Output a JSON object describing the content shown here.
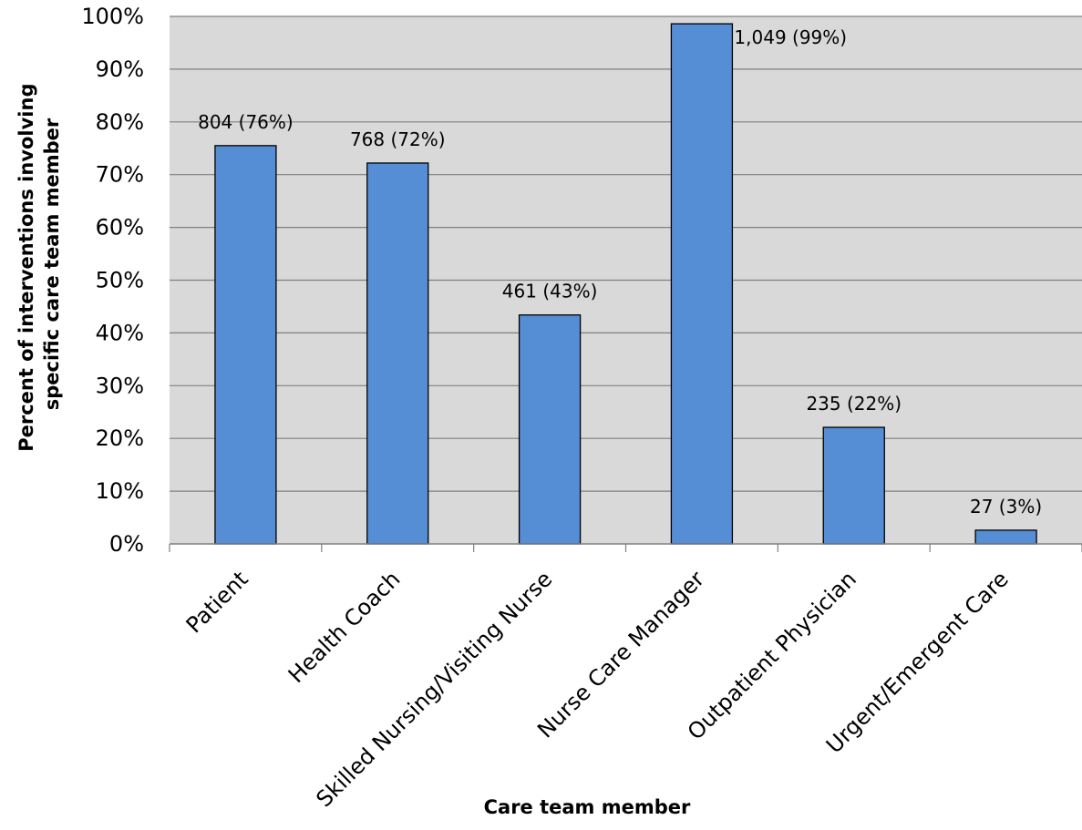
{
  "chart_data": {
    "type": "bar",
    "title": "",
    "xlabel": "Care team member",
    "ylabel_lines": [
      "Percent of interventions involving",
      "specific care team member"
    ],
    "categories": [
      "Patient",
      "Health Coach",
      "Skilled Nursing/Visiting Nurse",
      "Nurse Care Manager",
      "Outpatient Physician",
      "Urgent/Emergent Care"
    ],
    "values": [
      75.5,
      72.2,
      43.4,
      98.6,
      22.1,
      2.6
    ],
    "data_labels": [
      "804 (76%)",
      "768 (72%)",
      "461 (43%)",
      "1,049 (99%)",
      "235 (22%)",
      "27 (3%)"
    ],
    "ylim": [
      0,
      100
    ],
    "yticks": [
      0,
      10,
      20,
      30,
      40,
      50,
      60,
      70,
      80,
      90,
      100
    ],
    "ytick_labels": [
      "0%",
      "10%",
      "20%",
      "30%",
      "40%",
      "50%",
      "60%",
      "70%",
      "80%",
      "90%",
      "100%"
    ],
    "grid": true,
    "legend": "none",
    "colors": {
      "bar": "#558ED5",
      "bar_stroke": "#000000",
      "plot_background": "#D9D9D9",
      "grid": "#808080"
    }
  }
}
